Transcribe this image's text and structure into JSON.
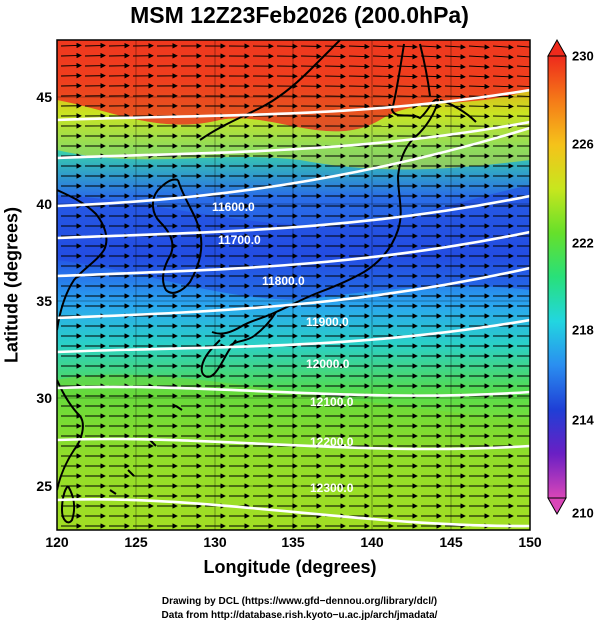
{
  "title": "MSM 12Z23Feb2026 (200.0hPa)",
  "axes": {
    "xlabel": "Longitude (degrees)",
    "ylabel": "Latitude  (degrees)",
    "x_ticks": [
      "120",
      "125",
      "130",
      "135",
      "140",
      "145",
      "150"
    ],
    "y_ticks": [
      "25",
      "30",
      "35",
      "40",
      "45"
    ]
  },
  "colorbar": {
    "ticks": [
      "230",
      "226",
      "222",
      "218",
      "214",
      "210"
    ],
    "min": 210,
    "max": 230,
    "colors": [
      "#d946b8",
      "#6a1fc4",
      "#1f3fd6",
      "#2a8ef0",
      "#22d6e0",
      "#28e07a",
      "#66e02a",
      "#c8e61e",
      "#f5c21a",
      "#f57a18",
      "#ee2a1c"
    ]
  },
  "contours": [
    {
      "label": "11600.0"
    },
    {
      "label": "11700.0"
    },
    {
      "label": "11800.0"
    },
    {
      "label": "11900.0"
    },
    {
      "label": "12000.0"
    },
    {
      "label": "12100.0"
    },
    {
      "label": "12200.0"
    },
    {
      "label": "12300.0"
    }
  ],
  "credits": {
    "line1": "Drawing by DCL (https://www.gfd−dennou.org/library/dcl/)",
    "line2": "Data from http://database.rish.kyoto−u.ac.jp/arch/jmadata/"
  }
}
